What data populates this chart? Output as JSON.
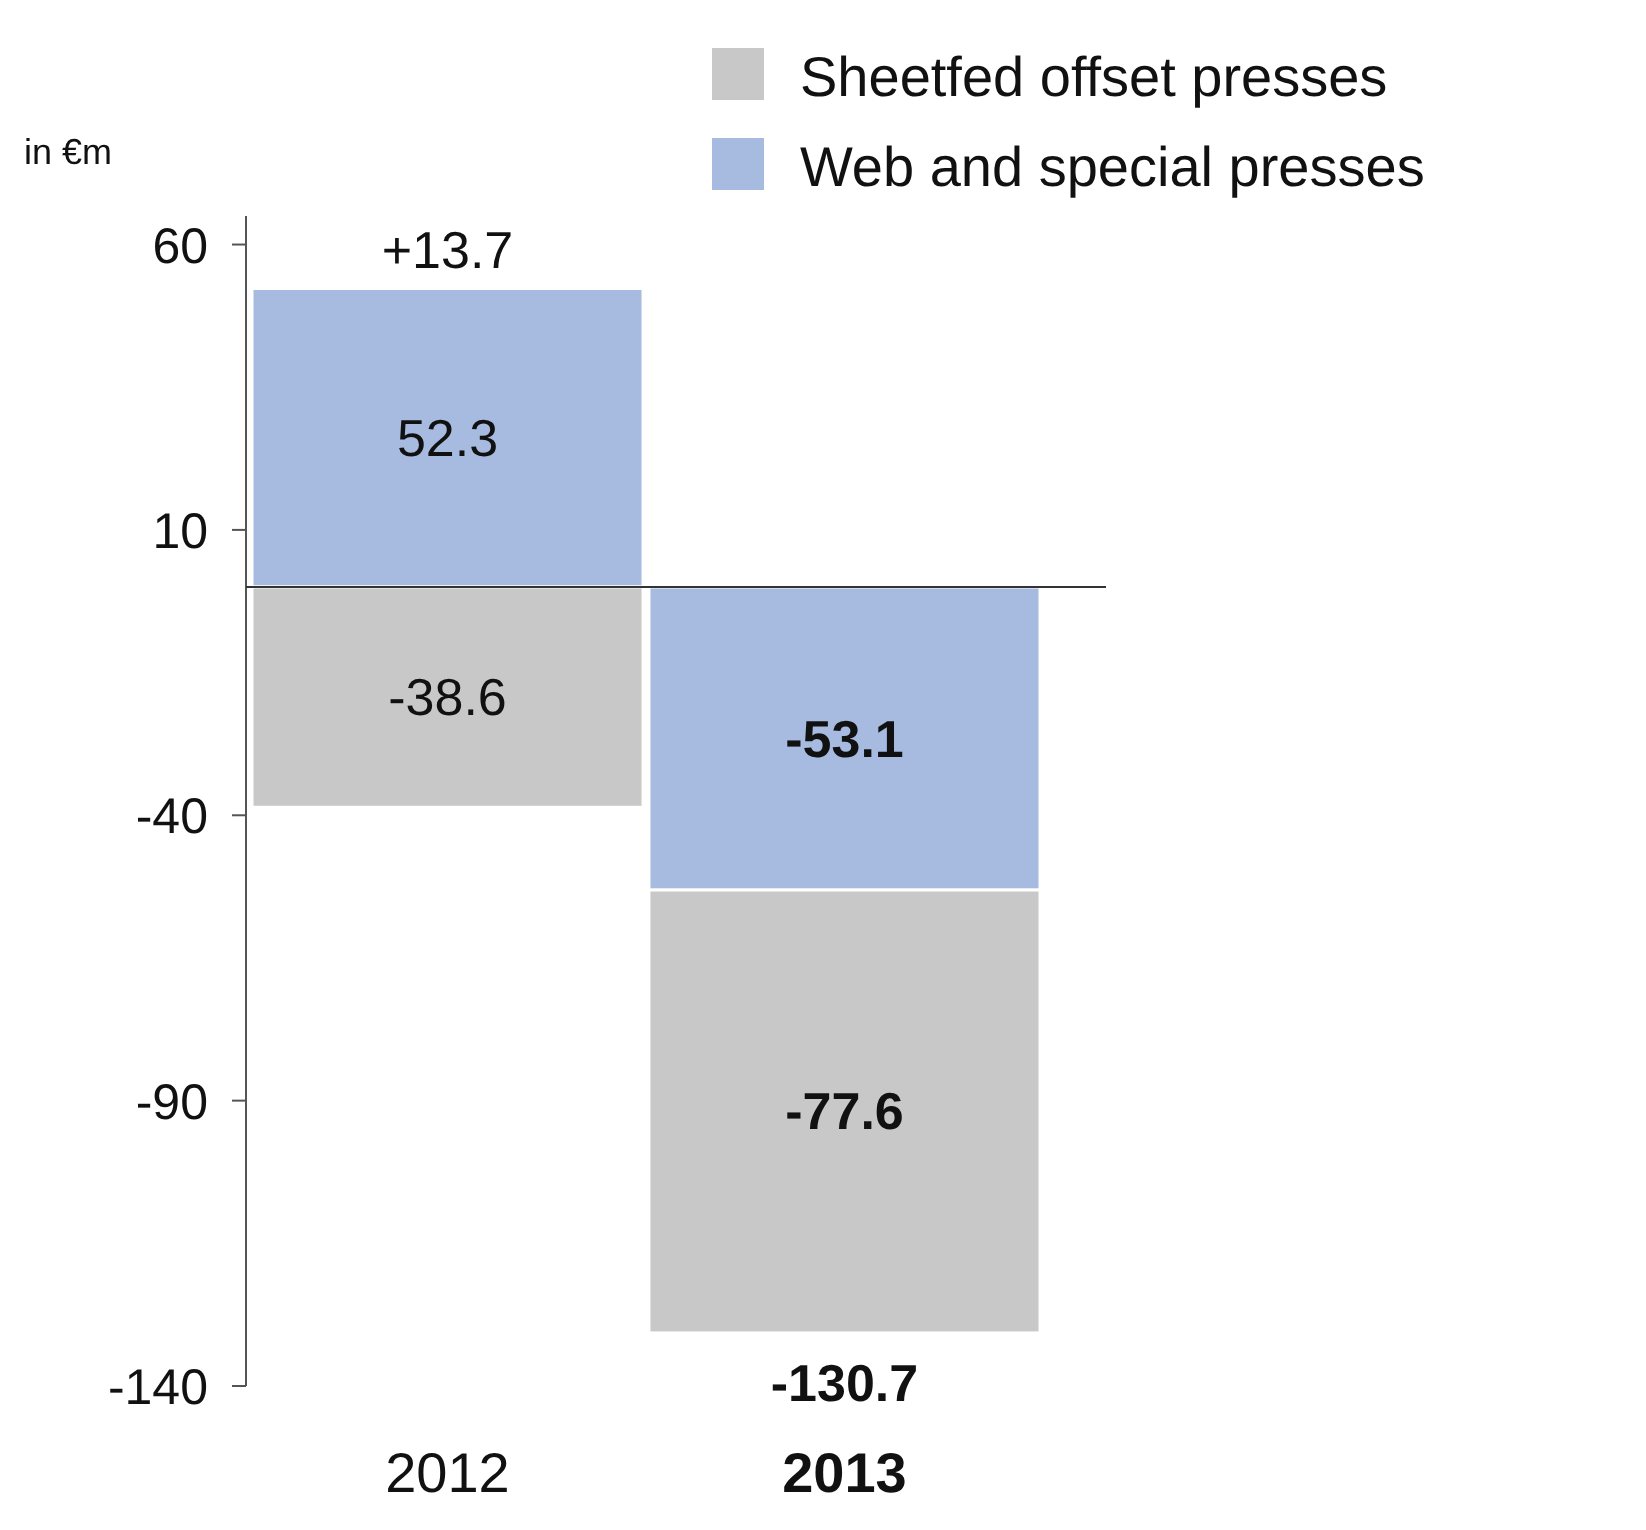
{
  "chart_data": {
    "type": "bar",
    "ylabel": "in €m",
    "categories": [
      "2012",
      "2013"
    ],
    "series": [
      {
        "name": "Web and special presses",
        "color": "#a6bbdf",
        "values": [
          52.3,
          -53.1
        ]
      },
      {
        "name": "Sheetfed offset presses",
        "color": "#c8c8c8",
        "values": [
          -38.6,
          -77.6
        ]
      }
    ],
    "stacked": true,
    "ylim": [
      -140,
      65
    ],
    "yticks": [
      60,
      10,
      -40,
      -90,
      -140
    ],
    "data_labels": true,
    "totals": [
      "+13.7",
      "-130.7"
    ],
    "legend": "top right",
    "grid": false
  }
}
